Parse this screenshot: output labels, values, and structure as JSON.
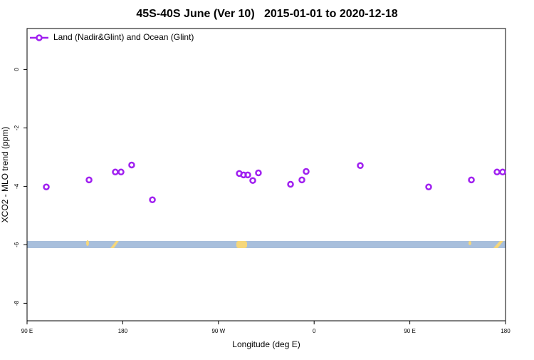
{
  "chart_data": {
    "type": "scatter",
    "title": "45S-40S June (Ver 10)   2015-01-01 to 2020-12-18",
    "x_label": "Longitude (deg E)",
    "y_label": "XCO2 - MLO trend (ppm)",
    "xlim": [
      90,
      540
    ],
    "ylim": [
      -8.6,
      1.4
    ],
    "xticks": [
      {
        "value": 90,
        "label": "90 E"
      },
      180,
      {
        "value": 270,
        "label": "90 W"
      },
      {
        "value": 360,
        "label": "0"
      },
      {
        "value": 450,
        "label": "90 E"
      },
      {
        "value": 540,
        "label": "180"
      }
    ],
    "yticks": [
      0,
      -2,
      -4,
      -6,
      -8
    ],
    "legend": "top-left",
    "series": [
      {
        "name": "Land (Nadir&Glint) and Ocean (Glint)",
        "color": "#a020f0",
        "x": [
          108.1,
          148.3,
          173.0,
          178.4,
          188.4,
          207.9,
          289.6,
          293.6,
          297.6,
          302.3,
          307.6,
          337.8,
          348.5,
          352.5,
          403.4,
          467.7,
          507.9,
          532.0,
          537.3
        ],
        "values": [
          -4.02,
          -3.78,
          -3.51,
          -3.51,
          -3.27,
          -4.46,
          -3.56,
          -3.61,
          -3.61,
          -3.8,
          -3.54,
          -3.93,
          -3.78,
          -3.49,
          -3.29,
          -4.02,
          -3.78,
          -3.51,
          -3.51
        ]
      }
    ]
  }
}
